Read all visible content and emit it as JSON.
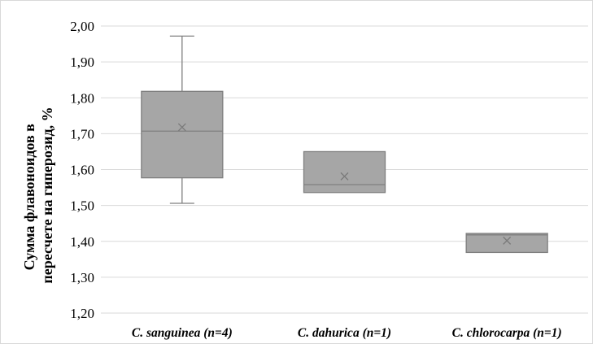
{
  "chart_data": {
    "type": "boxplot",
    "title": "",
    "xlabel": "",
    "ylabel_lines": [
      "Сумма флавоноидов в",
      "пересчете на гиперозид, %"
    ],
    "ylim": [
      1.2,
      2.0
    ],
    "yticks": [
      "1,20",
      "1,30",
      "1,40",
      "1,50",
      "1,60",
      "1,70",
      "1,80",
      "1,90",
      "2,00"
    ],
    "grid": true,
    "legend": "none",
    "categories": [
      "C. sanguinea (n=4)",
      "C. dahurica (n=1)",
      "C. chlorocarpa  (n=1)"
    ],
    "boxes": [
      {
        "min": 1.506,
        "q1": 1.577,
        "median": 1.707,
        "q3": 1.818,
        "max": 1.972,
        "mean": 1.718
      },
      {
        "min": 1.536,
        "q1": 1.536,
        "median": 1.558,
        "q3": 1.65,
        "max": 1.65,
        "mean": 1.581
      },
      {
        "min": 1.369,
        "q1": 1.369,
        "median": 1.418,
        "q3": 1.422,
        "max": 1.422,
        "mean": 1.402
      }
    ],
    "colors": {
      "box_fill": "#a6a6a6",
      "box_stroke": "#7f7f7f",
      "grid": "#d9d9d9",
      "mean_marker": "#7a7a7a"
    }
  }
}
